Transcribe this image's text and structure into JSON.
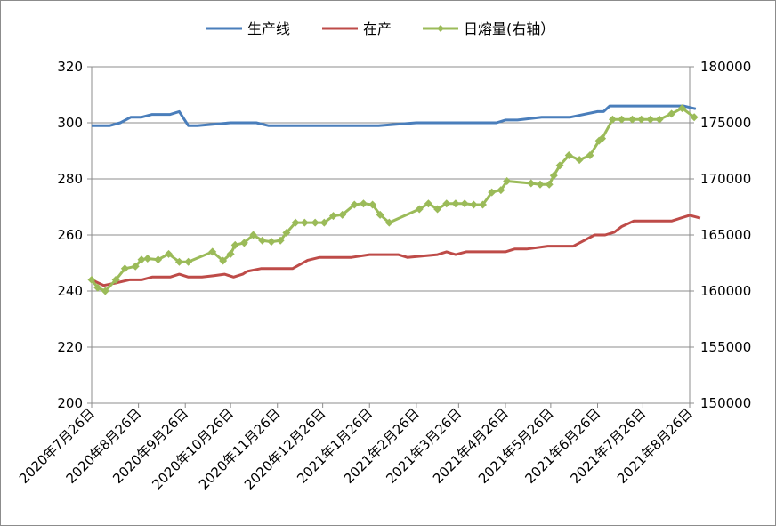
{
  "chart_data": {
    "type": "line",
    "categories": [
      "2020年7月26日",
      "2020年8月26日",
      "2020年9月26日",
      "2020年10月26日",
      "2020年11月26日",
      "2020年12月26日",
      "2021年1月26日",
      "2021年2月26日",
      "2021年3月26日",
      "2021年4月26日",
      "2021年5月26日",
      "2021年6月26日",
      "2021年7月26日",
      "2021年8月26日"
    ],
    "x_start": "2020-07-26",
    "x_end": "2021-08-26",
    "y_left": {
      "ticks": [
        200,
        220,
        240,
        260,
        280,
        300,
        320
      ],
      "ylim": [
        200,
        320
      ]
    },
    "y_right": {
      "ticks": [
        150000,
        155000,
        160000,
        165000,
        170000,
        175000,
        180000
      ],
      "ylim": [
        150000,
        180000
      ]
    },
    "legend_position": "top-center",
    "gridlines": "horizontal",
    "series": [
      {
        "name": "生产线",
        "axis": "left",
        "color": "#4a7ebb",
        "marker": "none",
        "points": [
          [
            "2020-07-26",
            299
          ],
          [
            "2020-08-07",
            299
          ],
          [
            "2020-08-14",
            300
          ],
          [
            "2020-08-21",
            302
          ],
          [
            "2020-08-28",
            302
          ],
          [
            "2020-09-04",
            303
          ],
          [
            "2020-09-16",
            303
          ],
          [
            "2020-09-22",
            304
          ],
          [
            "2020-09-28",
            299
          ],
          [
            "2020-10-04",
            299
          ],
          [
            "2020-10-26",
            300
          ],
          [
            "2020-11-12",
            300
          ],
          [
            "2020-11-20",
            299
          ],
          [
            "2021-01-10",
            299
          ],
          [
            "2021-02-01",
            299
          ],
          [
            "2021-02-26",
            300
          ],
          [
            "2021-03-26",
            300
          ],
          [
            "2021-04-20",
            300
          ],
          [
            "2021-04-26",
            301
          ],
          [
            "2021-05-04",
            301
          ],
          [
            "2021-05-20",
            302
          ],
          [
            "2021-06-08",
            302
          ],
          [
            "2021-06-26",
            304
          ],
          [
            "2021-06-30",
            304
          ],
          [
            "2021-07-04",
            306
          ],
          [
            "2021-08-22",
            306
          ],
          [
            "2021-08-30",
            305
          ]
        ]
      },
      {
        "name": "在产",
        "axis": "left",
        "color": "#be4b48",
        "marker": "none",
        "points": [
          [
            "2020-07-26",
            244
          ],
          [
            "2020-07-30",
            243
          ],
          [
            "2020-08-03",
            242
          ],
          [
            "2020-08-12",
            243
          ],
          [
            "2020-08-20",
            244
          ],
          [
            "2020-08-28",
            244
          ],
          [
            "2020-09-04",
            245
          ],
          [
            "2020-09-16",
            245
          ],
          [
            "2020-09-22",
            246
          ],
          [
            "2020-09-28",
            245
          ],
          [
            "2020-10-07",
            245
          ],
          [
            "2020-10-15",
            245.5
          ],
          [
            "2020-10-22",
            246
          ],
          [
            "2020-10-28",
            245
          ],
          [
            "2020-11-03",
            246
          ],
          [
            "2020-11-06",
            247
          ],
          [
            "2020-11-15",
            248
          ],
          [
            "2020-12-06",
            248
          ],
          [
            "2020-12-16",
            251
          ],
          [
            "2020-12-24",
            252
          ],
          [
            "2021-01-06",
            252
          ],
          [
            "2021-01-14",
            252
          ],
          [
            "2021-01-26",
            253
          ],
          [
            "2021-02-14",
            253
          ],
          [
            "2021-02-20",
            252
          ],
          [
            "2021-03-12",
            253
          ],
          [
            "2021-03-18",
            254
          ],
          [
            "2021-03-24",
            253
          ],
          [
            "2021-03-31",
            254
          ],
          [
            "2021-04-26",
            254
          ],
          [
            "2021-05-02",
            255
          ],
          [
            "2021-05-10",
            255
          ],
          [
            "2021-05-24",
            256
          ],
          [
            "2021-06-10",
            256
          ],
          [
            "2021-06-17",
            258
          ],
          [
            "2021-06-24",
            260
          ],
          [
            "2021-07-01",
            260
          ],
          [
            "2021-07-07",
            261
          ],
          [
            "2021-07-12",
            263
          ],
          [
            "2021-07-20",
            265
          ],
          [
            "2021-08-14",
            265
          ],
          [
            "2021-08-26",
            267
          ],
          [
            "2021-09-02",
            266
          ]
        ]
      },
      {
        "name": "日熔量(右轴）",
        "axis": "right",
        "color": "#9bbb59",
        "marker": "diamond",
        "points": [
          [
            "2020-07-26",
            161000
          ],
          [
            "2020-07-30",
            160300
          ],
          [
            "2020-08-04",
            160000
          ],
          [
            "2020-08-11",
            161000
          ],
          [
            "2020-08-17",
            162000
          ],
          [
            "2020-08-24",
            162200
          ],
          [
            "2020-08-28",
            162800
          ],
          [
            "2020-09-01",
            162900
          ],
          [
            "2020-09-08",
            162800
          ],
          [
            "2020-09-15",
            163300
          ],
          [
            "2020-09-22",
            162600
          ],
          [
            "2020-09-28",
            162600
          ],
          [
            "2020-10-14",
            163500
          ],
          [
            "2020-10-21",
            162700
          ],
          [
            "2020-10-26",
            163300
          ],
          [
            "2020-10-29",
            164100
          ],
          [
            "2020-11-04",
            164300
          ],
          [
            "2020-11-10",
            165000
          ],
          [
            "2020-11-16",
            164500
          ],
          [
            "2020-11-22",
            164400
          ],
          [
            "2020-11-28",
            164500
          ],
          [
            "2020-12-02",
            165200
          ],
          [
            "2020-12-08",
            166100
          ],
          [
            "2020-12-14",
            166100
          ],
          [
            "2020-12-21",
            166100
          ],
          [
            "2020-12-27",
            166100
          ],
          [
            "2021-01-02",
            166700
          ],
          [
            "2021-01-08",
            166800
          ],
          [
            "2021-01-16",
            167700
          ],
          [
            "2021-01-22",
            167800
          ],
          [
            "2021-01-28",
            167700
          ],
          [
            "2021-02-02",
            166800
          ],
          [
            "2021-02-08",
            166100
          ],
          [
            "2021-02-28",
            167300
          ],
          [
            "2021-03-06",
            167800
          ],
          [
            "2021-03-12",
            167300
          ],
          [
            "2021-03-18",
            167800
          ],
          [
            "2021-03-24",
            167800
          ],
          [
            "2021-03-30",
            167800
          ],
          [
            "2021-04-05",
            167700
          ],
          [
            "2021-04-11",
            167700
          ],
          [
            "2021-04-17",
            168800
          ],
          [
            "2021-04-23",
            169000
          ],
          [
            "2021-04-27",
            169800
          ],
          [
            "2021-05-13",
            169600
          ],
          [
            "2021-05-19",
            169500
          ],
          [
            "2021-05-25",
            169500
          ],
          [
            "2021-05-28",
            170300
          ],
          [
            "2021-06-01",
            171200
          ],
          [
            "2021-06-07",
            172100
          ],
          [
            "2021-06-14",
            171700
          ],
          [
            "2021-06-21",
            172100
          ],
          [
            "2021-06-27",
            173400
          ],
          [
            "2021-06-29",
            173600
          ],
          [
            "2021-07-06",
            175300
          ],
          [
            "2021-07-12",
            175300
          ],
          [
            "2021-07-19",
            175300
          ],
          [
            "2021-07-25",
            175300
          ],
          [
            "2021-07-31",
            175300
          ],
          [
            "2021-08-06",
            175300
          ],
          [
            "2021-08-14",
            175800
          ],
          [
            "2021-08-21",
            176300
          ],
          [
            "2021-08-29",
            175500
          ]
        ]
      }
    ]
  }
}
